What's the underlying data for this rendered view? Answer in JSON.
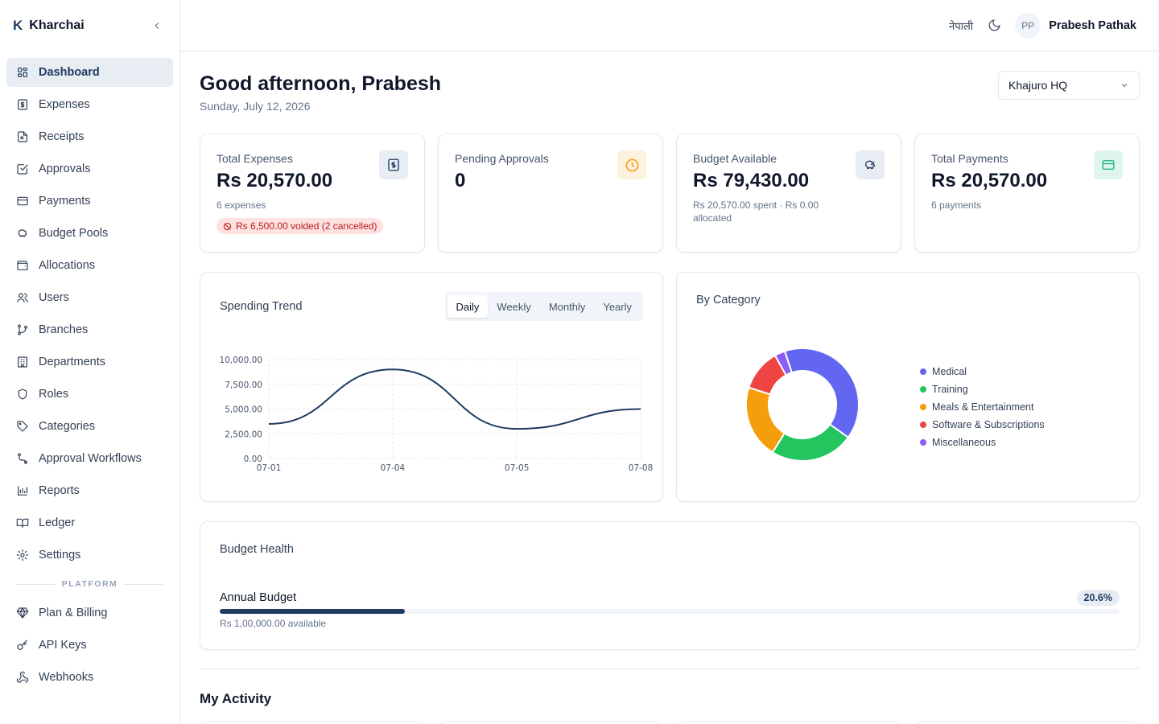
{
  "app": {
    "logo_letter": "K",
    "name": "Kharchai"
  },
  "sidebar": {
    "items": [
      {
        "label": "Dashboard",
        "icon": "grid-icon",
        "active": true
      },
      {
        "label": "Expenses",
        "icon": "dollar-receipt-icon"
      },
      {
        "label": "Receipts",
        "icon": "file-icon"
      },
      {
        "label": "Approvals",
        "icon": "check-square-icon"
      },
      {
        "label": "Payments",
        "icon": "credit-card-icon"
      },
      {
        "label": "Budget Pools",
        "icon": "piggy-bank-icon"
      },
      {
        "label": "Allocations",
        "icon": "wallet-icon"
      },
      {
        "label": "Users",
        "icon": "users-icon"
      },
      {
        "label": "Branches",
        "icon": "git-branch-icon"
      },
      {
        "label": "Departments",
        "icon": "building-icon"
      },
      {
        "label": "Roles",
        "icon": "shield-icon"
      },
      {
        "label": "Categories",
        "icon": "tag-icon"
      },
      {
        "label": "Approval Workflows",
        "icon": "workflow-icon"
      },
      {
        "label": "Reports",
        "icon": "bar-chart-icon"
      },
      {
        "label": "Ledger",
        "icon": "book-icon"
      },
      {
        "label": "Settings",
        "icon": "gear-icon"
      }
    ],
    "platform_label": "PLATFORM",
    "platform_items": [
      {
        "label": "Plan & Billing",
        "icon": "gem-icon"
      },
      {
        "label": "API Keys",
        "icon": "key-icon"
      },
      {
        "label": "Webhooks",
        "icon": "webhook-icon"
      }
    ]
  },
  "topbar": {
    "language": "नेपाली",
    "user_initials": "PP",
    "user_name": "Prabesh Pathak"
  },
  "main": {
    "greeting": "Good afternoon, Prabesh",
    "date": "Sunday, July 12, 2026",
    "branch": "Khajuro HQ",
    "stats": {
      "total_expenses": {
        "label": "Total Expenses",
        "value": "Rs 20,570.00",
        "sub": "6 expenses",
        "voided": "Rs 6,500.00 voided (2 cancelled)"
      },
      "pending": {
        "label": "Pending Approvals",
        "value": "0"
      },
      "budget": {
        "label": "Budget Available",
        "value": "Rs 79,430.00",
        "sub": "Rs 20,570.00 spent · Rs 0.00 allocated"
      },
      "payments": {
        "label": "Total Payments",
        "value": "Rs 20,570.00",
        "sub": "6 payments"
      }
    },
    "trend": {
      "title": "Spending Trend",
      "tabs": [
        "Daily",
        "Weekly",
        "Monthly",
        "Yearly"
      ],
      "active_tab": "Daily"
    },
    "category": {
      "title": "By Category"
    },
    "budget_health": {
      "title": "Budget Health",
      "name": "Annual Budget",
      "available": "Rs 1,00,000.00 available",
      "percent_label": "20.6%",
      "percent": 20.6
    },
    "activity": {
      "title": "My Activity"
    }
  },
  "colors": {
    "brand": "#1e3a5f",
    "amber": "#f59e0b",
    "green": "#10b981"
  },
  "chart_data": [
    {
      "type": "line",
      "x": [
        "07-01",
        "07-04",
        "07-05",
        "07-08"
      ],
      "series": [
        {
          "values": [
            3500,
            9000,
            3000,
            5000
          ]
        }
      ],
      "yticks": [
        "0.00",
        "2,500.00",
        "5,000.00",
        "7,500.00",
        "10,000.00"
      ],
      "ylim": [
        0,
        10000
      ],
      "grid": true
    },
    {
      "type": "pie",
      "labels": [
        "Medical",
        "Training",
        "Meals & Entertainment",
        "Software & Subscriptions",
        "Miscellaneous"
      ],
      "values": [
        40,
        24,
        21,
        12,
        3
      ],
      "colors": [
        "#6366f1",
        "#22c55e",
        "#f59e0b",
        "#ef4444",
        "#8b5cf6"
      ]
    }
  ]
}
